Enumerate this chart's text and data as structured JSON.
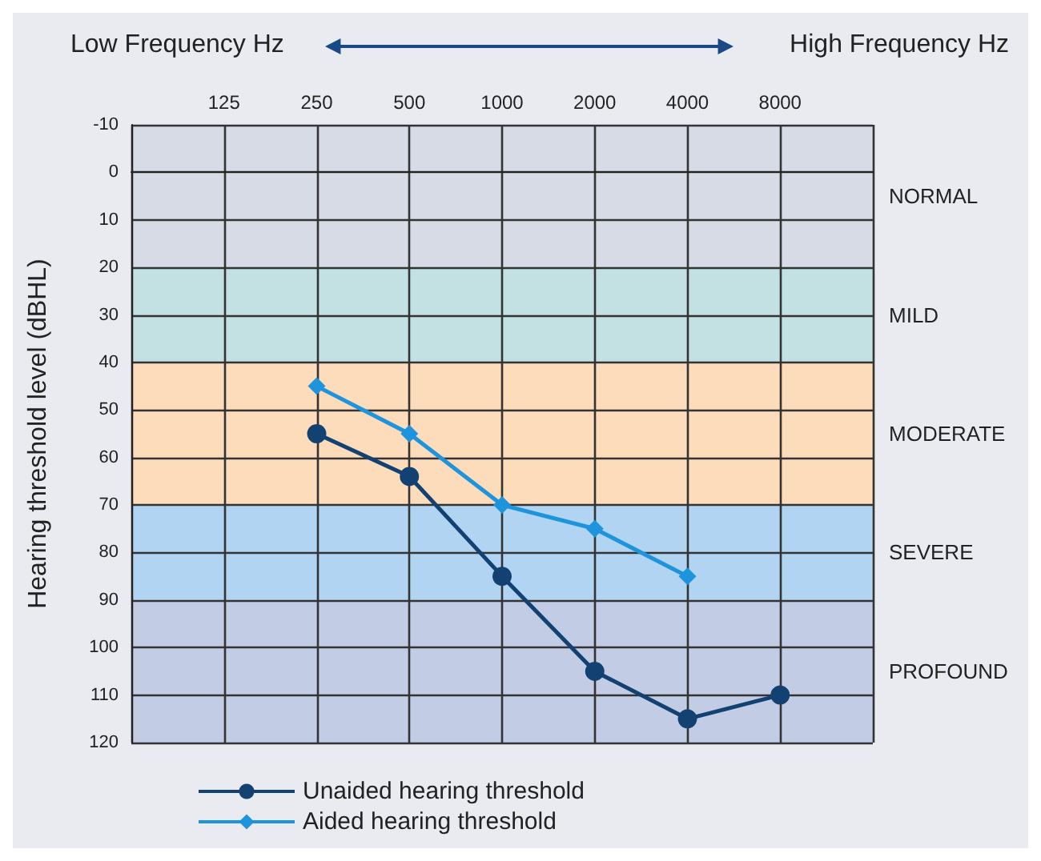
{
  "chart_data": {
    "type": "line",
    "annotations": [
      "Low Frequency Hz",
      "High Frequency Hz"
    ],
    "ylabel": "Hearing threshold level (dBHL)",
    "categories": [
      null,
      "125",
      "250",
      "500",
      "1000",
      "2000",
      "4000",
      "8000",
      null
    ],
    "series": [
      {
        "name": "Unaided hearing threshold",
        "color": "#134272",
        "marker": "circle",
        "values": [
          null,
          null,
          55,
          64,
          85,
          105,
          115,
          110,
          null
        ]
      },
      {
        "name": "Aided hearing threshold",
        "color": "#1e94dc",
        "marker": "diamond",
        "values": [
          null,
          null,
          45,
          55,
          70,
          75,
          85,
          null,
          null
        ]
      }
    ],
    "ylim": [
      120,
      -10
    ],
    "yticks": [
      -10,
      0,
      10,
      20,
      30,
      40,
      50,
      60,
      70,
      80,
      90,
      100,
      110,
      120
    ],
    "grid": true,
    "legend": "bottom",
    "line_style": "solid",
    "bands": [
      {
        "axis": "y",
        "from": -10,
        "to": 20,
        "label": "NORMAL",
        "color": "#d6dbe6"
      },
      {
        "axis": "y",
        "from": 20,
        "to": 40,
        "label": "MILD",
        "color": "#c3e1e2"
      },
      {
        "axis": "y",
        "from": 40,
        "to": 70,
        "label": "MODERATE",
        "color": "#fddcbc"
      },
      {
        "axis": "y",
        "from": 70,
        "to": 90,
        "label": "SEVERE",
        "color": "#b0d4f1"
      },
      {
        "axis": "y",
        "from": 90,
        "to": 120,
        "label": "PROFOUND",
        "color": "#c3cce5"
      }
    ]
  }
}
